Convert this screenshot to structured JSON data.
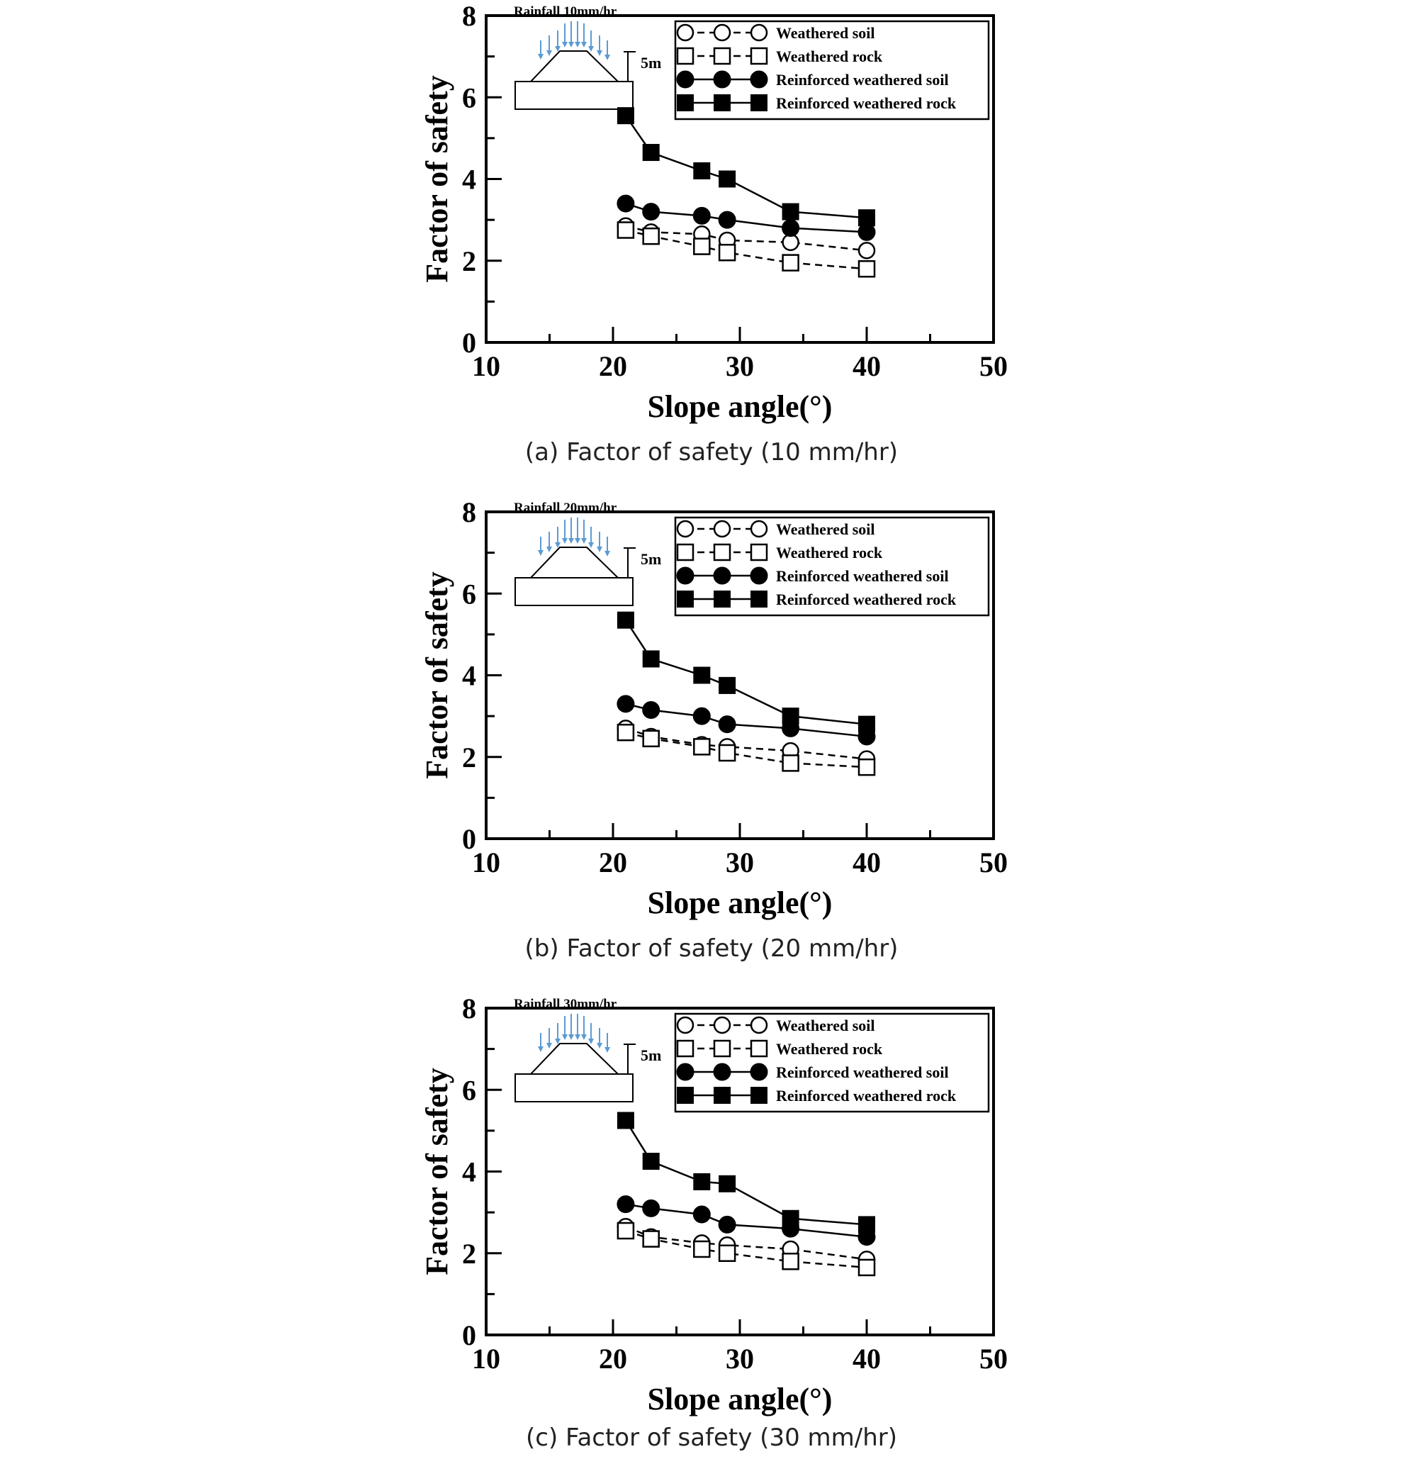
{
  "chart_data": [
    {
      "type": "line",
      "caption": "(a) Factor of safety (10 mm/hr)",
      "inset_label": "Rainfall 10mm/hr",
      "height_label": "5m",
      "xlabel": "Slope angle(°)",
      "ylabel": "Factor of safety",
      "xlim": [
        10,
        50
      ],
      "ylim": [
        0,
        8
      ],
      "xticks": [
        10,
        20,
        30,
        40,
        50
      ],
      "yticks": [
        0,
        2,
        4,
        6,
        8
      ],
      "legend_position": "top-right",
      "series": [
        {
          "name": "Weathered soil",
          "marker": "circle-open",
          "line": "dashed",
          "x": [
            21,
            23,
            27,
            29,
            34,
            40
          ],
          "y": [
            2.85,
            2.7,
            2.65,
            2.5,
            2.45,
            2.25
          ]
        },
        {
          "name": "Weathered rock",
          "marker": "square-open",
          "line": "dashed",
          "x": [
            21,
            23,
            27,
            29,
            34,
            40
          ],
          "y": [
            2.75,
            2.6,
            2.35,
            2.2,
            1.95,
            1.8
          ]
        },
        {
          "name": "Reinforced weathered soil",
          "marker": "circle-filled",
          "line": "solid",
          "x": [
            21,
            23,
            27,
            29,
            34,
            40
          ],
          "y": [
            3.4,
            3.2,
            3.1,
            3.0,
            2.8,
            2.7
          ]
        },
        {
          "name": "Reinforced weathered rock",
          "marker": "square-filled",
          "line": "solid",
          "x": [
            21,
            23,
            27,
            29,
            34,
            40
          ],
          "y": [
            5.55,
            4.65,
            4.2,
            4.0,
            3.2,
            3.05
          ]
        }
      ]
    },
    {
      "type": "line",
      "caption": "(b) Factor of safety (20 mm/hr)",
      "inset_label": "Rainfall 20mm/hr",
      "height_label": "5m",
      "xlabel": "Slope angle(°)",
      "ylabel": "Factor of safety",
      "xlim": [
        10,
        50
      ],
      "ylim": [
        0,
        8
      ],
      "xticks": [
        10,
        20,
        30,
        40,
        50
      ],
      "yticks": [
        0,
        2,
        4,
        6,
        8
      ],
      "legend_position": "top-right",
      "series": [
        {
          "name": "Weathered soil",
          "marker": "circle-open",
          "line": "dashed",
          "x": [
            21,
            23,
            27,
            29,
            34,
            40
          ],
          "y": [
            2.7,
            2.5,
            2.3,
            2.25,
            2.15,
            1.95
          ]
        },
        {
          "name": "Weathered rock",
          "marker": "square-open",
          "line": "dashed",
          "x": [
            21,
            23,
            27,
            29,
            34,
            40
          ],
          "y": [
            2.6,
            2.45,
            2.25,
            2.1,
            1.85,
            1.75
          ]
        },
        {
          "name": "Reinforced weathered soil",
          "marker": "circle-filled",
          "line": "solid",
          "x": [
            21,
            23,
            27,
            29,
            34,
            40
          ],
          "y": [
            3.3,
            3.15,
            3.0,
            2.8,
            2.7,
            2.5
          ]
        },
        {
          "name": "Reinforced weathered rock",
          "marker": "square-filled",
          "line": "solid",
          "x": [
            21,
            23,
            27,
            29,
            34,
            40
          ],
          "y": [
            5.35,
            4.4,
            4.0,
            3.75,
            3.0,
            2.8
          ]
        }
      ]
    },
    {
      "type": "line",
      "caption": "(c) Factor of safety (30 mm/hr)",
      "inset_label": "Rainfall 30mm/hr",
      "height_label": "5m",
      "xlabel": "Slope angle(°)",
      "ylabel": "Factor of safety",
      "xlim": [
        10,
        50
      ],
      "ylim": [
        0,
        8
      ],
      "xticks": [
        10,
        20,
        30,
        40,
        50
      ],
      "yticks": [
        0,
        2,
        4,
        6,
        8
      ],
      "legend_position": "top-right",
      "series": [
        {
          "name": "Weathered soil",
          "marker": "circle-open",
          "line": "dashed",
          "x": [
            21,
            23,
            27,
            29,
            34,
            40
          ],
          "y": [
            2.65,
            2.4,
            2.25,
            2.2,
            2.1,
            1.85
          ]
        },
        {
          "name": "Weathered rock",
          "marker": "square-open",
          "line": "dashed",
          "x": [
            21,
            23,
            27,
            29,
            34,
            40
          ],
          "y": [
            2.55,
            2.35,
            2.1,
            2.0,
            1.8,
            1.65
          ]
        },
        {
          "name": "Reinforced weathered soil",
          "marker": "circle-filled",
          "line": "solid",
          "x": [
            21,
            23,
            27,
            29,
            34,
            40
          ],
          "y": [
            3.2,
            3.1,
            2.95,
            2.7,
            2.6,
            2.4
          ]
        },
        {
          "name": "Reinforced weathered rock",
          "marker": "square-filled",
          "line": "solid",
          "x": [
            21,
            23,
            27,
            29,
            34,
            40
          ],
          "y": [
            5.25,
            4.25,
            3.75,
            3.7,
            2.85,
            2.7
          ]
        }
      ]
    }
  ],
  "colors": {
    "axis": "#000000",
    "rain_arrow": "#5b9bd5",
    "caption": "#222222"
  }
}
